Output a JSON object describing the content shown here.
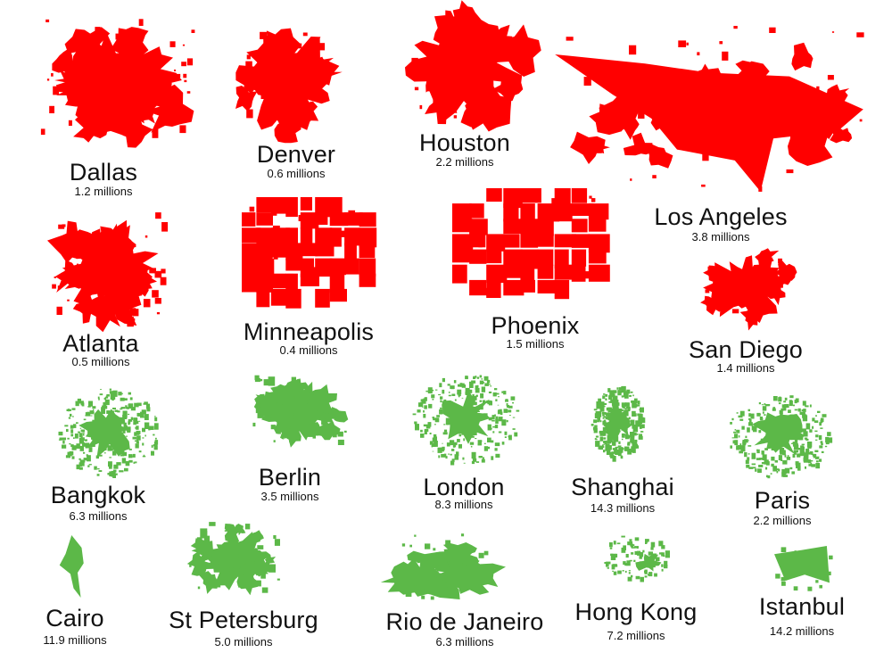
{
  "colors": {
    "us_cities": "#ff0000",
    "world_cities": "#5cb848",
    "text": "#111111",
    "background": "#ffffff"
  },
  "cities": [
    {
      "name": "Dallas",
      "population": "1.2 millions",
      "region": "us"
    },
    {
      "name": "Denver",
      "population": "0.6 millions",
      "region": "us"
    },
    {
      "name": "Houston",
      "population": "2.2 millions",
      "region": "us"
    },
    {
      "name": "Los Angeles",
      "population": "3.8 millions",
      "region": "us"
    },
    {
      "name": "Atlanta",
      "population": "0.5 millions",
      "region": "us"
    },
    {
      "name": "Minneapolis",
      "population": "0.4 millions",
      "region": "us"
    },
    {
      "name": "Phoenix",
      "population": "1.5 millions",
      "region": "us"
    },
    {
      "name": "San Diego",
      "population": "1.4 millions",
      "region": "us"
    },
    {
      "name": "Bangkok",
      "population": "6.3 millions",
      "region": "world"
    },
    {
      "name": "Berlin",
      "population": "3.5 millions",
      "region": "world"
    },
    {
      "name": "London",
      "population": "8.3 millions",
      "region": "world"
    },
    {
      "name": "Shanghai",
      "population": "14.3 millions",
      "region": "world"
    },
    {
      "name": "Paris",
      "population": "2.2 millions",
      "region": "world"
    },
    {
      "name": "Cairo",
      "population": "11.9 millions",
      "region": "world"
    },
    {
      "name": "St Petersburg",
      "population": "5.0 millions",
      "region": "world"
    },
    {
      "name": "Rio de Janeiro",
      "population": "6.3 millions",
      "region": "world"
    },
    {
      "name": "Hong Kong",
      "population": "7.2 millions",
      "region": "world"
    },
    {
      "name": "Istanbul",
      "population": "14.2 millions",
      "region": "world"
    }
  ]
}
